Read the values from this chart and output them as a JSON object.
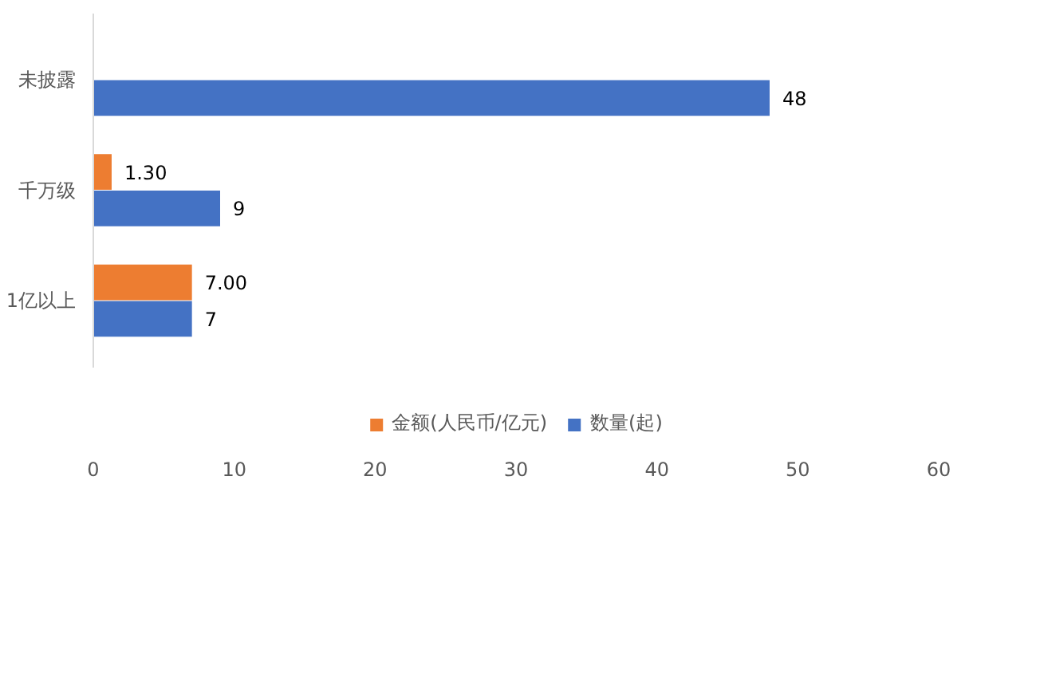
{
  "chart_data": {
    "type": "bar",
    "orientation": "horizontal",
    "categories": [
      "未披露",
      "千万级",
      "1亿以上"
    ],
    "series": [
      {
        "name": "金额(人民币/亿元)",
        "color": "#ed7d31",
        "values": [
          null,
          1.3,
          7.0
        ],
        "value_labels": [
          null,
          "1.30",
          "7.00"
        ]
      },
      {
        "name": "数量(起)",
        "color": "#4472c4",
        "values": [
          48,
          9,
          7
        ],
        "value_labels": [
          "48",
          "9",
          "7"
        ]
      }
    ],
    "xlim": [
      0,
      60
    ],
    "xticks": [
      0,
      10,
      20,
      30,
      40,
      50,
      60
    ],
    "grid": false,
    "legend": "bottom"
  }
}
